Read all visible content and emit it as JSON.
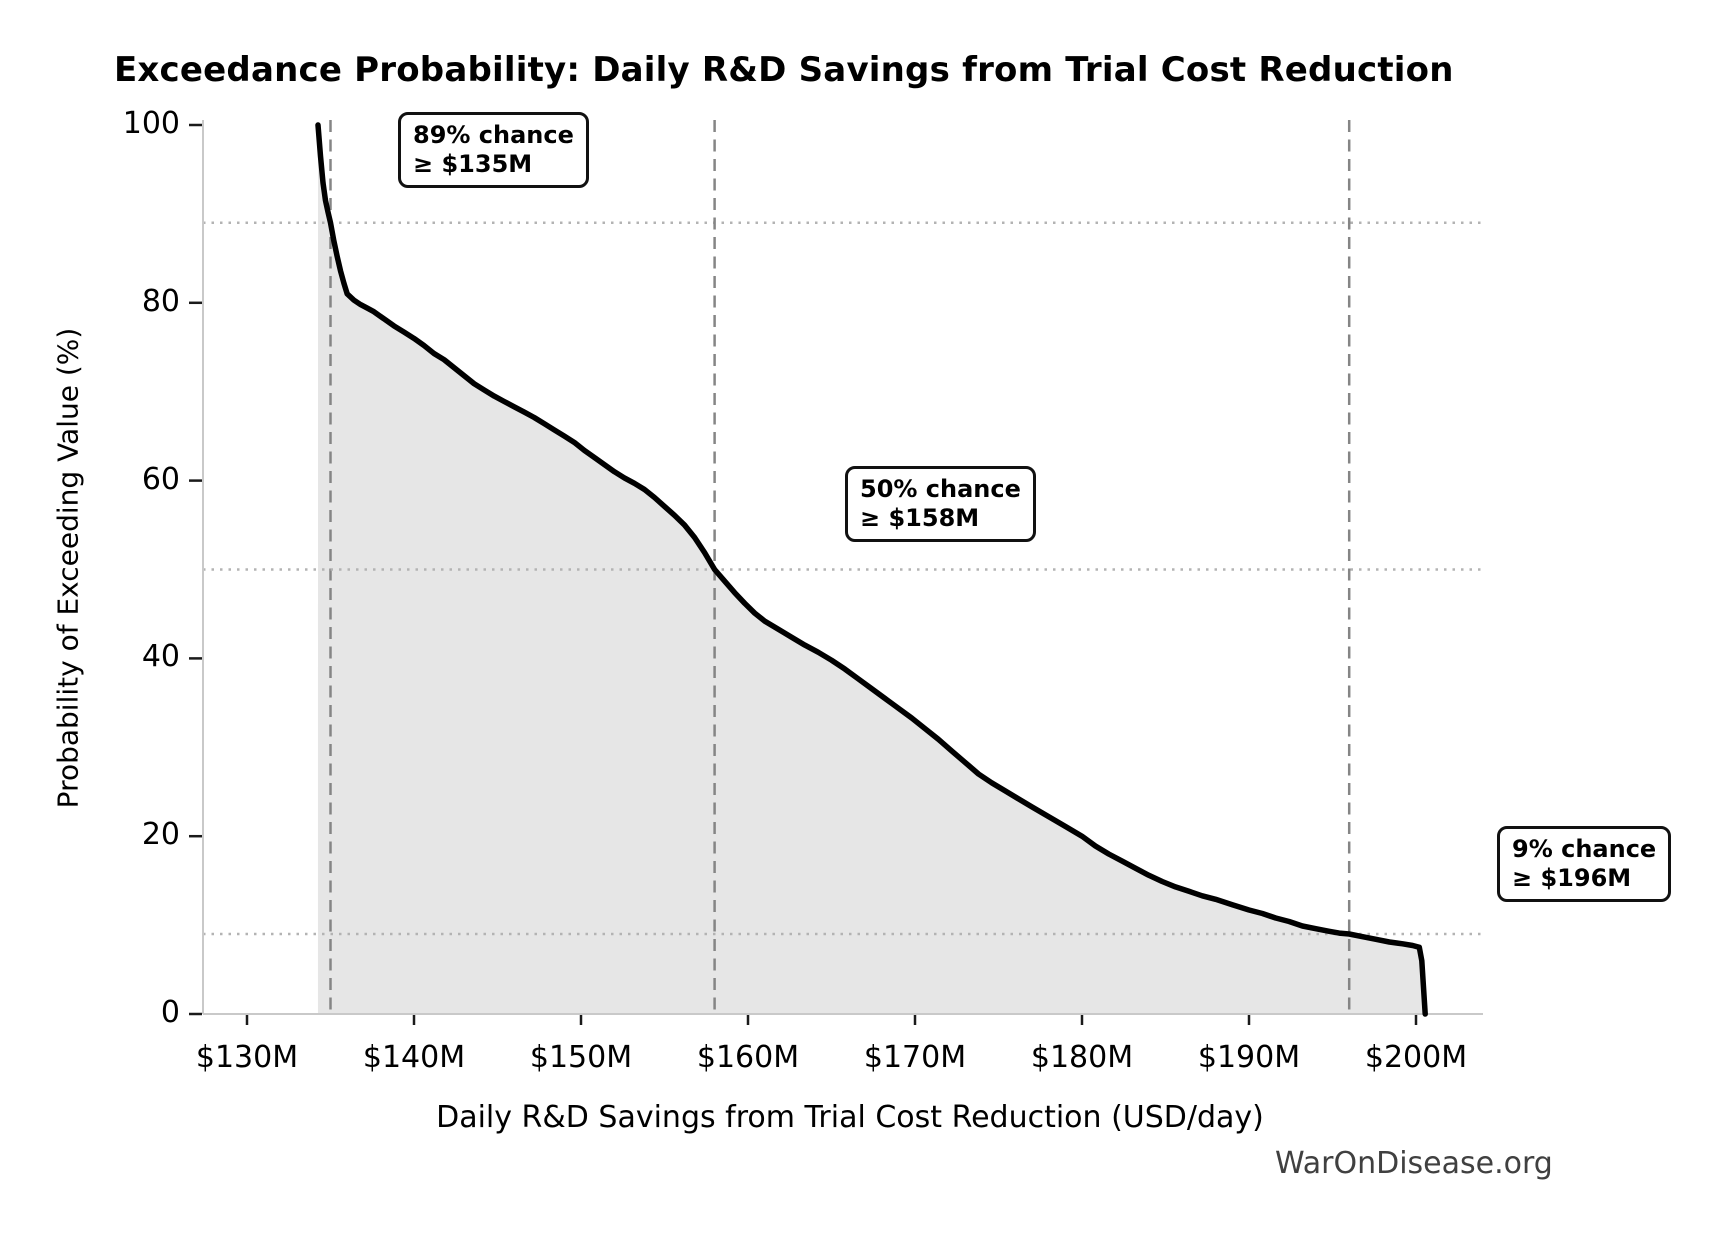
{
  "title": "Exceedance Probability: Daily R&D Savings from Trial Cost Reduction",
  "watermark": "WarOnDisease.org",
  "chart_data": {
    "type": "line",
    "title": "Exceedance Probability: Daily R&D Savings from Trial Cost Reduction",
    "xlabel": "Daily R&D Savings from Trial Cost Reduction (USD/day)",
    "ylabel": "Probability of Exceeding Value (%)",
    "x_unit": "USD millions per day",
    "y_unit": "percent",
    "xlim": [
      127.3,
      204.0
    ],
    "ylim": [
      0,
      100
    ],
    "grid": "dotted horizontal lines only at annotated probabilities; dashed vertical lines at annotated values",
    "legend_position": "none",
    "line_color": "#000000",
    "fill_color": "#e6e6e6",
    "x_ticks": [
      {
        "v": 130,
        "label": "$130M"
      },
      {
        "v": 140,
        "label": "$140M"
      },
      {
        "v": 150,
        "label": "$150M"
      },
      {
        "v": 160,
        "label": "$160M"
      },
      {
        "v": 170,
        "label": "$170M"
      },
      {
        "v": 180,
        "label": "$180M"
      },
      {
        "v": 190,
        "label": "$190M"
      },
      {
        "v": 200,
        "label": "$200M"
      }
    ],
    "y_ticks": [
      {
        "v": 0,
        "label": "0"
      },
      {
        "v": 20,
        "label": "20"
      },
      {
        "v": 40,
        "label": "40"
      },
      {
        "v": 60,
        "label": "60"
      },
      {
        "v": 80,
        "label": "80"
      },
      {
        "v": 100,
        "label": "100"
      }
    ],
    "annotations": [
      {
        "probability_pct": 89,
        "value_musd": 135,
        "label_line1": "89% chance",
        "label_line2": "≥ $135M"
      },
      {
        "probability_pct": 50,
        "value_musd": 158,
        "label_line1": "50% chance",
        "label_line2": "≥ $158M"
      },
      {
        "probability_pct": 9,
        "value_musd": 196,
        "label_line1": "9% chance",
        "label_line2": "≥ $196M"
      }
    ],
    "points": [
      [
        134.25,
        100.0
      ],
      [
        134.4,
        96.5
      ],
      [
        134.55,
        93.5
      ],
      [
        134.7,
        91.5
      ],
      [
        134.85,
        90.2
      ],
      [
        135.0,
        89.0
      ],
      [
        135.2,
        87.0
      ],
      [
        135.4,
        85.2
      ],
      [
        135.6,
        83.6
      ],
      [
        135.8,
        82.2
      ],
      [
        136.0,
        81.0
      ],
      [
        136.4,
        80.3
      ],
      [
        136.8,
        79.8
      ],
      [
        137.2,
        79.4
      ],
      [
        137.6,
        79.0
      ],
      [
        138.2,
        78.2
      ],
      [
        138.8,
        77.4
      ],
      [
        139.4,
        76.7
      ],
      [
        140.0,
        76.0
      ],
      [
        140.6,
        75.2
      ],
      [
        141.2,
        74.3
      ],
      [
        141.8,
        73.6
      ],
      [
        142.4,
        72.7
      ],
      [
        143.0,
        71.8
      ],
      [
        143.6,
        70.9
      ],
      [
        144.2,
        70.2
      ],
      [
        144.8,
        69.5
      ],
      [
        145.4,
        68.9
      ],
      [
        146.0,
        68.3
      ],
      [
        146.6,
        67.7
      ],
      [
        147.2,
        67.1
      ],
      [
        147.8,
        66.4
      ],
      [
        148.4,
        65.7
      ],
      [
        149.0,
        65.0
      ],
      [
        149.6,
        64.3
      ],
      [
        150.2,
        63.4
      ],
      [
        150.8,
        62.6
      ],
      [
        151.4,
        61.8
      ],
      [
        152.0,
        61.0
      ],
      [
        152.6,
        60.3
      ],
      [
        153.2,
        59.7
      ],
      [
        153.8,
        59.0
      ],
      [
        154.4,
        58.1
      ],
      [
        155.0,
        57.1
      ],
      [
        155.6,
        56.1
      ],
      [
        156.2,
        55.0
      ],
      [
        156.8,
        53.6
      ],
      [
        157.4,
        51.9
      ],
      [
        158.0,
        50.0
      ],
      [
        158.6,
        48.7
      ],
      [
        159.2,
        47.4
      ],
      [
        159.8,
        46.2
      ],
      [
        160.4,
        45.1
      ],
      [
        161.0,
        44.2
      ],
      [
        161.8,
        43.3
      ],
      [
        162.6,
        42.4
      ],
      [
        163.4,
        41.5
      ],
      [
        164.2,
        40.7
      ],
      [
        165.0,
        39.8
      ],
      [
        165.8,
        38.8
      ],
      [
        166.6,
        37.7
      ],
      [
        167.4,
        36.6
      ],
      [
        168.2,
        35.5
      ],
      [
        169.0,
        34.4
      ],
      [
        169.8,
        33.3
      ],
      [
        170.6,
        32.1
      ],
      [
        171.4,
        30.9
      ],
      [
        172.2,
        29.6
      ],
      [
        173.0,
        28.3
      ],
      [
        173.8,
        27.0
      ],
      [
        174.6,
        26.0
      ],
      [
        175.4,
        25.1
      ],
      [
        176.2,
        24.2
      ],
      [
        177.0,
        23.3
      ],
      [
        178.0,
        22.2
      ],
      [
        179.0,
        21.1
      ],
      [
        180.0,
        20.0
      ],
      [
        180.8,
        18.9
      ],
      [
        181.6,
        18.0
      ],
      [
        182.4,
        17.2
      ],
      [
        183.2,
        16.4
      ],
      [
        184.0,
        15.6
      ],
      [
        184.8,
        14.9
      ],
      [
        185.6,
        14.3
      ],
      [
        186.4,
        13.8
      ],
      [
        187.2,
        13.3
      ],
      [
        188.0,
        12.9
      ],
      [
        189.0,
        12.3
      ],
      [
        190.0,
        11.7
      ],
      [
        190.8,
        11.3
      ],
      [
        191.6,
        10.8
      ],
      [
        192.4,
        10.4
      ],
      [
        193.2,
        9.9
      ],
      [
        194.0,
        9.6
      ],
      [
        194.8,
        9.3
      ],
      [
        195.4,
        9.1
      ],
      [
        196.0,
        9.0
      ],
      [
        196.8,
        8.7
      ],
      [
        197.6,
        8.4
      ],
      [
        198.4,
        8.1
      ],
      [
        199.2,
        7.9
      ],
      [
        199.8,
        7.7
      ],
      [
        200.2,
        7.5
      ],
      [
        200.35,
        6.0
      ],
      [
        200.45,
        3.0
      ],
      [
        200.55,
        0.0
      ]
    ]
  }
}
